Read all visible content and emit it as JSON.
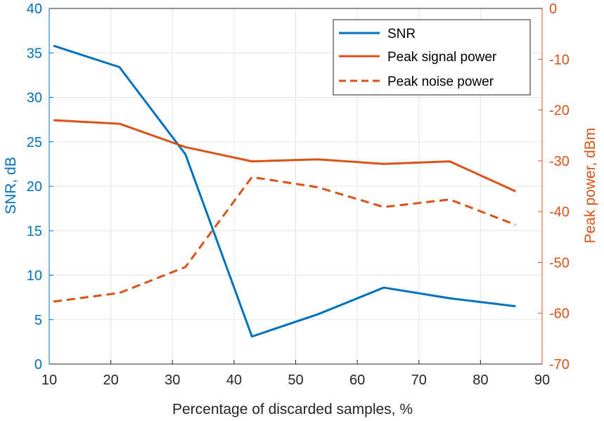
{
  "chart_data": {
    "type": "line",
    "xlabel": "Percentage of discarded samples, %",
    "ylabel_left": "SNR, dB",
    "ylabel_right": "Peak power, dBm",
    "xlim": [
      10,
      90
    ],
    "ylim_left": [
      0,
      40
    ],
    "ylim_right": [
      -70,
      0
    ],
    "x_ticks": [
      "10",
      "20",
      "30",
      "40",
      "50",
      "60",
      "70",
      "80",
      "90"
    ],
    "y_ticks_left": [
      "0",
      "5",
      "10",
      "15",
      "20",
      "25",
      "30",
      "35",
      "40"
    ],
    "y_ticks_right": [
      "-70",
      "-60",
      "-50",
      "-40",
      "-30",
      "-20",
      "-10",
      "0"
    ],
    "grid": true,
    "legend_position": "top-right",
    "colors": {
      "left_axis": "#0072BD",
      "right_axis": "#D95319",
      "grid": "#e6e6e6",
      "x_axis": "#262626"
    },
    "series": [
      {
        "name": "SNR",
        "axis": "left",
        "style": "solid",
        "color": "#0072BD",
        "x": [
          10.7,
          21.4,
          32.1,
          42.9,
          53.6,
          64.3,
          75.0,
          85.7
        ],
        "values": [
          35.8,
          33.4,
          23.6,
          3.1,
          5.6,
          8.6,
          7.4,
          6.5
        ]
      },
      {
        "name": "Peak signal power",
        "axis": "right",
        "style": "solid",
        "color": "#D95319",
        "x": [
          10.7,
          21.4,
          32.1,
          42.9,
          53.6,
          64.3,
          75.0,
          85.7
        ],
        "values": [
          -22.0,
          -22.7,
          -27.3,
          -30.1,
          -29.7,
          -30.6,
          -30.1,
          -36.0
        ]
      },
      {
        "name": "Peak noise power",
        "axis": "right",
        "style": "dashed",
        "color": "#D95319",
        "x": [
          10.7,
          21.4,
          32.1,
          42.9,
          53.6,
          64.3,
          75.0,
          85.7
        ],
        "values": [
          -57.7,
          -56.0,
          -50.9,
          -33.2,
          -35.2,
          -39.1,
          -37.6,
          -42.6
        ]
      }
    ]
  }
}
